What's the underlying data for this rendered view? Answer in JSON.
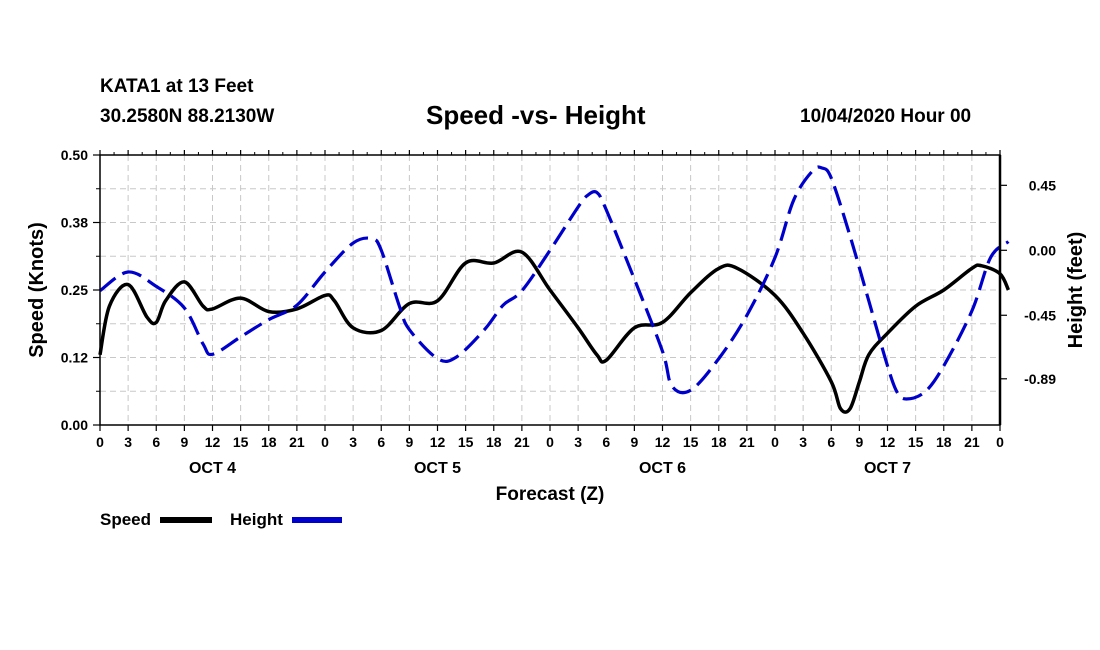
{
  "header": {
    "station": "KATA1 at 13 Feet",
    "coords": "30.2580N 88.2130W",
    "title": "Speed -vs- Height",
    "date": "10/04/2020 Hour 00"
  },
  "colors": {
    "speed": "#000000",
    "height": "#0000cc",
    "grid": "#c8c8c8"
  },
  "chart_data": {
    "type": "line",
    "title": "Speed -vs- Height",
    "xlabel": "Forecast (Z)",
    "ylabel": "Speed (Knots)",
    "y2label": "Height (feet)",
    "x_range": [
      0,
      96
    ],
    "ylim": [
      0,
      0.5
    ],
    "y2lim": [
      -1.21,
      0.66
    ],
    "y_ticks": [
      0,
      0.125,
      0.25,
      0.375,
      0.5
    ],
    "y_tick_labels": [
      "0.00",
      "0.12",
      "0.25",
      "0.38",
      "0.50"
    ],
    "y2_ticks": [
      -0.89,
      -0.45,
      0,
      0.45
    ],
    "y2_tick_labels": [
      "-0.89",
      "-0.45",
      "0.00",
      "0.45"
    ],
    "x_ticks": [
      0,
      3,
      6,
      9,
      12,
      15,
      18,
      21,
      24,
      27,
      30,
      33,
      36,
      39,
      42,
      45,
      48,
      51,
      54,
      57,
      60,
      63,
      66,
      69,
      72,
      75,
      78,
      81,
      84,
      87,
      90,
      93,
      96
    ],
    "x_tick_labels": [
      "0",
      "3",
      "6",
      "9",
      "12",
      "15",
      "18",
      "21",
      "0",
      "3",
      "6",
      "9",
      "12",
      "15",
      "18",
      "21",
      "0",
      "3",
      "6",
      "9",
      "12",
      "15",
      "18",
      "21",
      "0",
      "3",
      "6",
      "9",
      "12",
      "15",
      "18",
      "21",
      "0"
    ],
    "day_labels": [
      {
        "label": "OCT 4",
        "x": 12
      },
      {
        "label": "OCT 5",
        "x": 36
      },
      {
        "label": "OCT 6",
        "x": 60
      },
      {
        "label": "OCT 7",
        "x": 84
      }
    ],
    "series": [
      {
        "name": "Speed",
        "axis": "left",
        "style": "solid",
        "points": [
          [
            0,
            0.13
          ],
          [
            1,
            0.22
          ],
          [
            3,
            0.26
          ],
          [
            5,
            0.2
          ],
          [
            6,
            0.19
          ],
          [
            7,
            0.23
          ],
          [
            9,
            0.265
          ],
          [
            11,
            0.22
          ],
          [
            12,
            0.215
          ],
          [
            15,
            0.235
          ],
          [
            18,
            0.21
          ],
          [
            21,
            0.215
          ],
          [
            24,
            0.24
          ],
          [
            25,
            0.23
          ],
          [
            27,
            0.18
          ],
          [
            30,
            0.175
          ],
          [
            33,
            0.225
          ],
          [
            36,
            0.23
          ],
          [
            39,
            0.3
          ],
          [
            42,
            0.3
          ],
          [
            45,
            0.32
          ],
          [
            48,
            0.25
          ],
          [
            51,
            0.18
          ],
          [
            53,
            0.13
          ],
          [
            54,
            0.12
          ],
          [
            57,
            0.18
          ],
          [
            60,
            0.19
          ],
          [
            63,
            0.245
          ],
          [
            66,
            0.29
          ],
          [
            68,
            0.29
          ],
          [
            72,
            0.24
          ],
          [
            75,
            0.17
          ],
          [
            78,
            0.08
          ],
          [
            79,
            0.03
          ],
          [
            80,
            0.03
          ],
          [
            81,
            0.08
          ],
          [
            82,
            0.13
          ],
          [
            84,
            0.17
          ],
          [
            87,
            0.22
          ],
          [
            90,
            0.25
          ],
          [
            93,
            0.29
          ],
          [
            94,
            0.295
          ],
          [
            96,
            0.28
          ],
          [
            96.9,
            0.25
          ]
        ]
      },
      {
        "name": "Height",
        "axis": "right",
        "style": "dashed",
        "points": [
          [
            0,
            -0.28
          ],
          [
            3,
            -0.15
          ],
          [
            6,
            -0.25
          ],
          [
            9,
            -0.4
          ],
          [
            11,
            -0.65
          ],
          [
            12,
            -0.72
          ],
          [
            15,
            -0.6
          ],
          [
            18,
            -0.48
          ],
          [
            21,
            -0.38
          ],
          [
            24,
            -0.15
          ],
          [
            27,
            0.05
          ],
          [
            29,
            0.08
          ],
          [
            30,
            0.0
          ],
          [
            32,
            -0.4
          ],
          [
            33,
            -0.55
          ],
          [
            36,
            -0.75
          ],
          [
            38,
            -0.74
          ],
          [
            41,
            -0.55
          ],
          [
            43,
            -0.38
          ],
          [
            45,
            -0.28
          ],
          [
            48,
            0.0
          ],
          [
            51,
            0.3
          ],
          [
            52,
            0.38
          ],
          [
            53,
            0.4
          ],
          [
            54,
            0.28
          ],
          [
            57,
            -0.2
          ],
          [
            60,
            -0.7
          ],
          [
            61,
            -0.94
          ],
          [
            63,
            -0.97
          ],
          [
            66,
            -0.75
          ],
          [
            69,
            -0.45
          ],
          [
            72,
            -0.05
          ],
          [
            74,
            0.35
          ],
          [
            76,
            0.55
          ],
          [
            77,
            0.57
          ],
          [
            78,
            0.5
          ],
          [
            80,
            0.1
          ],
          [
            82,
            -0.35
          ],
          [
            84,
            -0.8
          ],
          [
            85,
            -0.98
          ],
          [
            86,
            -1.03
          ],
          [
            88,
            -0.98
          ],
          [
            90,
            -0.8
          ],
          [
            93,
            -0.42
          ],
          [
            95,
            -0.05
          ],
          [
            96.9,
            0.06
          ]
        ]
      }
    ],
    "legend": [
      {
        "label": "Speed",
        "series": "Speed"
      },
      {
        "label": "Height",
        "series": "Height"
      }
    ],
    "legend_position": "bottom-left",
    "grid": true
  }
}
